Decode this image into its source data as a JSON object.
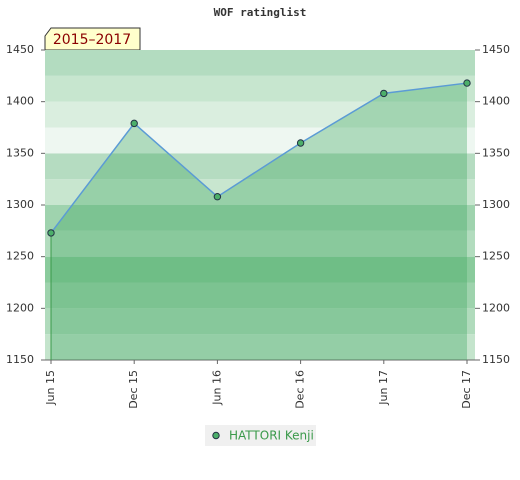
{
  "chart_data": {
    "type": "line",
    "title": "WOF ratinglist",
    "badge": "2015–2017",
    "categories": [
      "Jun 15",
      "Dec 15",
      "Jun 16",
      "Dec 16",
      "Jun 17",
      "Dec 17"
    ],
    "series": [
      {
        "name": "HATTORI Kenji",
        "color": "#5b9bd5",
        "marker_color": "#4caf6a",
        "values": [
          1273,
          1379,
          1308,
          1360,
          1408,
          1418
        ]
      }
    ],
    "ylim": [
      1150,
      1450
    ],
    "yticks": [
      1150,
      1200,
      1250,
      1300,
      1350,
      1400,
      1450
    ],
    "y2lim": [
      1150,
      1450
    ],
    "y2ticks": [
      1150,
      1200,
      1250,
      1300,
      1350,
      1400,
      1450
    ]
  }
}
